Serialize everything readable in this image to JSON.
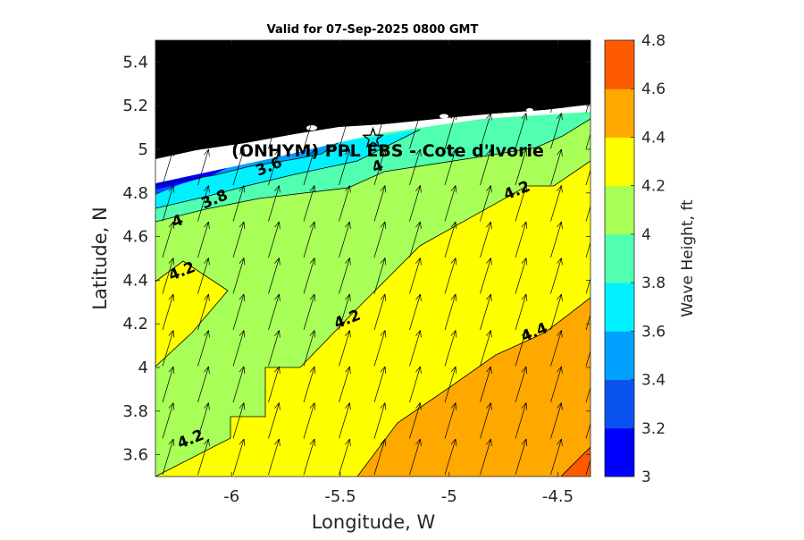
{
  "title": "Valid for 07-Sep-2025 0800 GMT",
  "xlabel": "Longitude, W",
  "ylabel": "Latitude, N",
  "site_label": "(ONHYM) PPL EBS  - Cote d'Ivorie",
  "colorbar": {
    "label": "Wave Height, ft",
    "ticks": [
      "3",
      "3.2",
      "3.4",
      "3.6",
      "3.8",
      "4",
      "4.2",
      "4.4",
      "4.6",
      "4.8"
    ],
    "levels": [
      {
        "from": 3.0,
        "to": 3.2,
        "color": "#0000ff"
      },
      {
        "from": 3.2,
        "to": 3.4,
        "color": "#0a52f0"
      },
      {
        "from": 3.4,
        "to": 3.6,
        "color": "#00a0ff"
      },
      {
        "from": 3.6,
        "to": 3.8,
        "color": "#00f0ff"
      },
      {
        "from": 3.8,
        "to": 4.0,
        "color": "#50ffb0"
      },
      {
        "from": 4.0,
        "to": 4.2,
        "color": "#a8ff58"
      },
      {
        "from": 4.2,
        "to": 4.4,
        "color": "#ffff00"
      },
      {
        "from": 4.4,
        "to": 4.6,
        "color": "#ffa800"
      },
      {
        "from": 4.6,
        "to": 4.8,
        "color": "#ff5a00"
      }
    ]
  },
  "chart_data": {
    "type": "heatmap",
    "xlim": [
      -6.35,
      -4.35
    ],
    "ylim": [
      3.5,
      5.5
    ],
    "xticks": [
      "-6",
      "-5.5",
      "-5",
      "-4.5"
    ],
    "xtick_values": [
      -6,
      -5.5,
      -5,
      -4.5
    ],
    "yticks": [
      "3.6",
      "3.8",
      "4",
      "4.2",
      "4.4",
      "4.6",
      "4.8",
      "5",
      "5.2",
      "5.4"
    ],
    "ytick_values": [
      3.6,
      3.8,
      4.0,
      4.2,
      4.4,
      4.6,
      4.8,
      5.0,
      5.2,
      5.4
    ],
    "land_color": "#000000",
    "site": {
      "lon": -5.35,
      "lat": 5.05
    },
    "contour_labels": [
      {
        "text": "3.6",
        "lon": -5.82,
        "lat": 4.9
      },
      {
        "text": "3.8",
        "lon": -6.07,
        "lat": 4.75
      },
      {
        "text": "4",
        "lon": -6.24,
        "lat": 4.65
      },
      {
        "text": "4",
        "lon": -5.32,
        "lat": 4.9
      },
      {
        "text": "4.2",
        "lon": -4.68,
        "lat": 4.79
      },
      {
        "text": "4.2",
        "lon": -6.22,
        "lat": 4.42
      },
      {
        "text": "4.2",
        "lon": -5.46,
        "lat": 4.2
      },
      {
        "text": "4.4",
        "lon": -4.6,
        "lat": 4.14
      },
      {
        "text": "4.2",
        "lon": -6.18,
        "lat": 3.65
      }
    ],
    "wave_direction": "toward north-northeast"
  }
}
